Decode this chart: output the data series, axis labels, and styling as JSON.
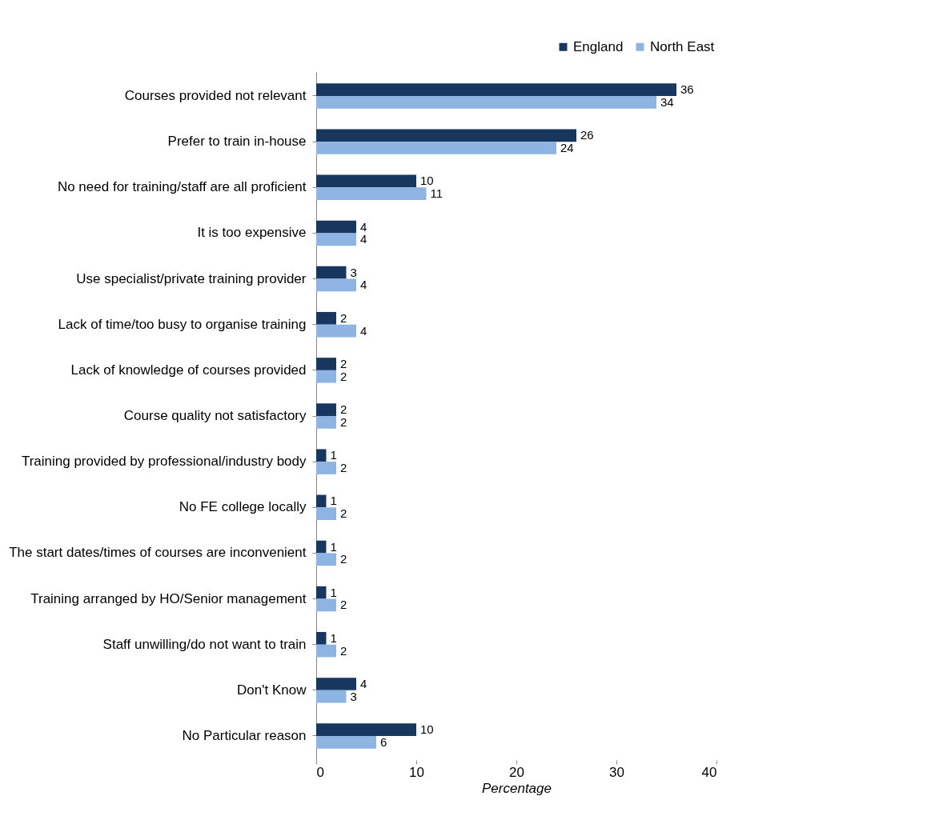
{
  "chart_data": {
    "type": "bar",
    "orientation": "horizontal",
    "xlabel": "Percentage",
    "categories": [
      "Courses provided not relevant",
      "Prefer to train in-house",
      "No need for training/staff are all proficient",
      "It is too expensive",
      "Use specialist/private training provider",
      "Lack of time/too busy to organise training",
      "Lack of knowledge of courses provided",
      "Course quality not satisfactory",
      "Training provided by professional/industry body",
      "No FE college locally",
      "The start dates/times of courses are inconvenient",
      "Training arranged by HO/Senior management",
      "Staff unwilling/do not want to train",
      "Don't Know",
      "No Particular reason"
    ],
    "series": [
      {
        "name": "England",
        "color": "#17375e",
        "values": [
          36,
          26,
          10,
          4,
          3,
          2,
          2,
          2,
          1,
          1,
          1,
          1,
          1,
          4,
          10
        ]
      },
      {
        "name": "North East",
        "color": "#8db4e2",
        "values": [
          34,
          24,
          11,
          4,
          4,
          4,
          2,
          2,
          2,
          2,
          2,
          2,
          2,
          3,
          6
        ]
      }
    ],
    "xlim": [
      0,
      40
    ],
    "xticks": [
      0,
      10,
      20,
      30,
      40
    ],
    "data_labels": true,
    "legend": "top right",
    "grid": false
  }
}
